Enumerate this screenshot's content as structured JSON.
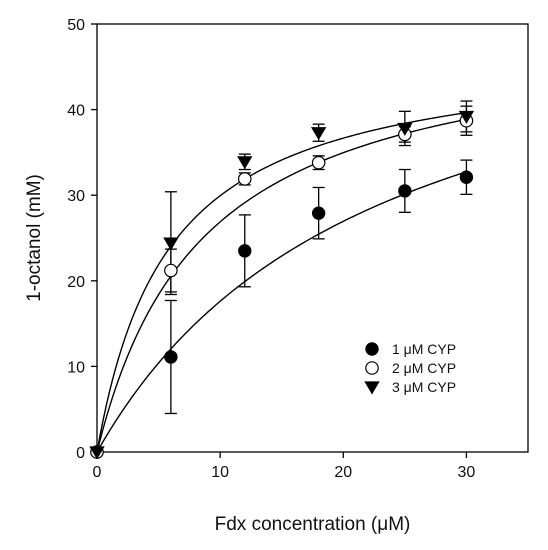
{
  "chart_data": {
    "type": "scatter",
    "title": "",
    "xlabel": "Fdx concentration (μM)",
    "ylabel": "1-octanol (mM)",
    "xlim": [
      0,
      35
    ],
    "ylim": [
      0,
      50
    ],
    "xticks": [
      0,
      10,
      20,
      30
    ],
    "yticks": [
      0,
      10,
      20,
      30,
      40,
      50
    ],
    "grid": false,
    "legend_position": "bottom-right",
    "series": [
      {
        "name": "1 μM CYP",
        "marker": "filled-circle",
        "x": [
          0,
          6,
          12,
          18,
          25,
          30
        ],
        "y": [
          0,
          11.1,
          23.5,
          27.9,
          30.5,
          32.1
        ],
        "error": [
          0,
          6.6,
          4.2,
          3.0,
          2.5,
          2.0
        ],
        "fit": {
          "vmax": 57.4,
          "km": 22.6
        }
      },
      {
        "name": "2 μM CYP",
        "marker": "open-circle",
        "x": [
          0,
          6,
          12,
          18,
          25,
          30
        ],
        "y": [
          0,
          21.2,
          31.9,
          33.8,
          37.1,
          38.7
        ],
        "error": [
          0,
          2.5,
          0.7,
          0.8,
          0.9,
          1.7
        ],
        "fit": {
          "vmax": 50.0,
          "km": 8.6
        }
      },
      {
        "name": "3 μM CYP",
        "marker": "filled-triangle-down",
        "x": [
          0,
          6,
          12,
          18,
          25,
          30
        ],
        "y": [
          0,
          24.4,
          33.9,
          37.3,
          37.8,
          39.2
        ],
        "error": [
          0,
          6.0,
          0.9,
          1.0,
          2.0,
          1.8
        ],
        "fit": {
          "vmax": 47.3,
          "km": 5.8
        }
      }
    ]
  }
}
